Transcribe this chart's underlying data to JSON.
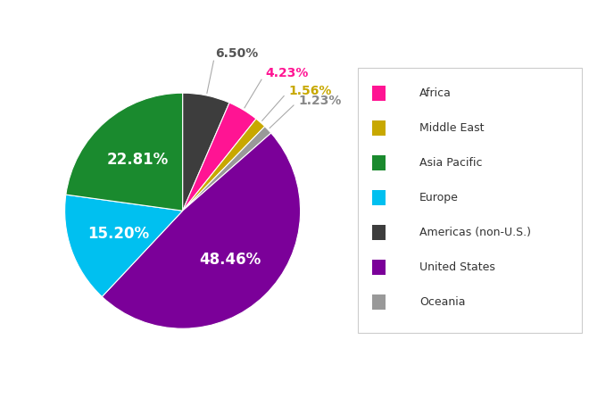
{
  "order_labels": [
    "Americas (non-U.S.)",
    "Africa",
    "Middle East",
    "Oceania",
    "United States",
    "Europe",
    "Asia Pacific"
  ],
  "order_values": [
    6.5,
    4.23,
    1.56,
    1.23,
    48.46,
    15.2,
    22.81
  ],
  "order_colors": [
    "#3d3d3d",
    "#FF1493",
    "#c8a800",
    "#999999",
    "#7b0099",
    "#00c0f0",
    "#1a8a2e"
  ],
  "pct_label_colors": {
    "Americas (non-U.S.)": "#555555",
    "Africa": "#FF1493",
    "Middle East": "#c8a800",
    "Oceania": "#888888",
    "United States": "white",
    "Europe": "white",
    "Asia Pacific": "white"
  },
  "pct_values": {
    "Americas (non-U.S.)": "6.50%",
    "Africa": "4.23%",
    "Middle East": "1.56%",
    "Oceania": "1.23%",
    "United States": "48.46%",
    "Europe": "15.20%",
    "Asia Pacific": "22.81%"
  },
  "inside_labels": [
    "United States",
    "Europe",
    "Asia Pacific"
  ],
  "outside_labels": [
    "Americas (non-U.S.)",
    "Africa",
    "Middle East",
    "Oceania"
  ],
  "legend_entries": [
    {
      "label": "Africa",
      "color": "#FF1493"
    },
    {
      "label": "Middle East",
      "color": "#c8a800"
    },
    {
      "label": "Asia Pacific",
      "color": "#1a8a2e"
    },
    {
      "label": "Europe",
      "color": "#00c0f0"
    },
    {
      "label": "Americas (non-U.S.)",
      "color": "#3d3d3d"
    },
    {
      "label": "United States",
      "color": "#7b0099"
    },
    {
      "label": "Oceania",
      "color": "#999999"
    }
  ],
  "figsize": [
    6.6,
    4.46
  ],
  "dpi": 100
}
